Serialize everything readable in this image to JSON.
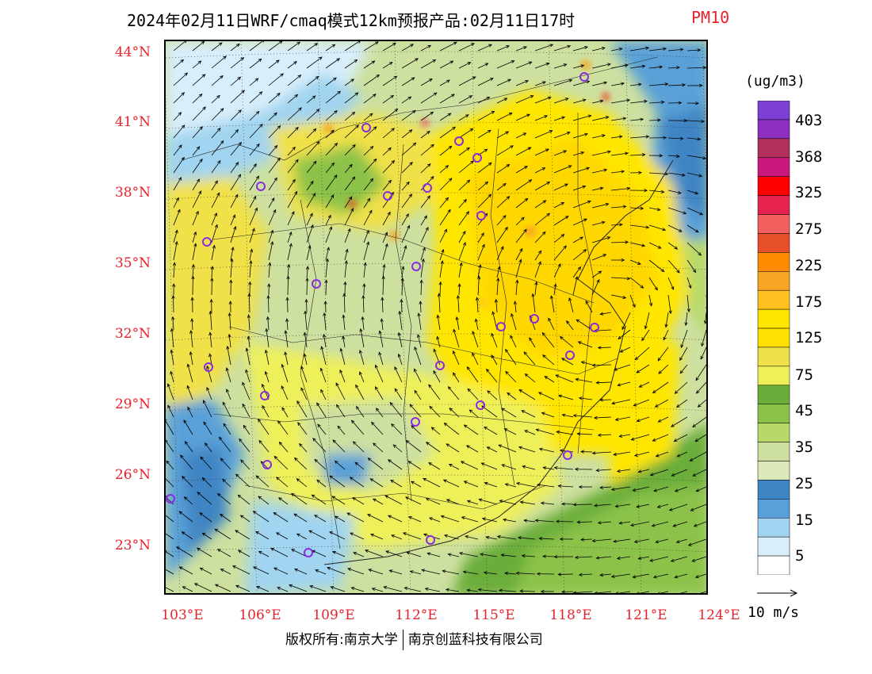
{
  "title": {
    "main": "2024年02月11日WRF/cmaq模式12km预报产品:02月11日17时",
    "pollutant": "PM10"
  },
  "map": {
    "lat_labels": [
      "44°N",
      "41°N",
      "38°N",
      "35°N",
      "32°N",
      "29°N",
      "26°N",
      "23°N"
    ],
    "lon_labels": [
      "103°E",
      "106°E",
      "109°E",
      "112°E",
      "115°E",
      "118°E",
      "121°E",
      "124°E"
    ],
    "colors": {
      "label_red": "#e8222b",
      "station_marker": "#8a2be2"
    },
    "field_description": "PM10 concentration shaded field with wind vectors"
  },
  "colorbar": {
    "unit": "(ug/m3)",
    "labels": [
      "403",
      "368",
      "325",
      "275",
      "225",
      "175",
      "125",
      "75",
      "45",
      "35",
      "25",
      "15",
      "5"
    ],
    "colors": [
      "#7b3fd6",
      "#8e2fbf",
      "#b3305d",
      "#c8177d",
      "#ff0000",
      "#e8224e",
      "#f26060",
      "#e8502b",
      "#ff8c00",
      "#f6a623",
      "#ffc020",
      "#ffe600",
      "#ffe000",
      "#f0e14a",
      "#eef05a",
      "#6aad3a",
      "#8cc24a",
      "#b8d96a",
      "#cde0a0",
      "#dce8b8",
      "#3f85c3",
      "#5aa0d8",
      "#a0d4f0",
      "#d8eefa",
      "#ffffff"
    ]
  },
  "wind": {
    "reference_label": "10 m/s"
  },
  "footer": {
    "copyright": "版权所有:南京大学",
    "company": "南京创蓝科技有限公司"
  }
}
